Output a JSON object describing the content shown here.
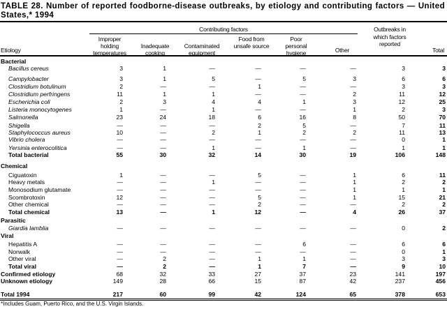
{
  "title": "TABLE 28. Number of reported foodborne-disease outbreaks, by etiology and contributing factors — United States,* 1994",
  "header": {
    "group": "Contributing factors",
    "etiology": "Etiology",
    "columns": [
      "Improper holding temperatures",
      "Inadequate cooking",
      "Contaminated equipment",
      "Food from unsafe source",
      "Poor personal hygiene",
      "Other",
      "Outbreaks in which factors reported",
      "Total"
    ]
  },
  "rows": [
    {
      "label": "Bacterial",
      "type": "section",
      "values": []
    },
    {
      "label": "Bacillus cereus",
      "type": "item italic",
      "values": [
        "3",
        "1",
        "—",
        "—",
        "—",
        "—",
        "3",
        "3"
      ]
    },
    {
      "label": "Campylobacter",
      "type": "item italic",
      "values": [
        "3",
        "1",
        "5",
        "—",
        "5",
        "3",
        "6",
        "6"
      ]
    },
    {
      "label": "Clostridium botulinum",
      "type": "item italic",
      "values": [
        "2",
        "—",
        "—",
        "1",
        "—",
        "—",
        "3",
        "3"
      ]
    },
    {
      "label": "Clostridium perfringens",
      "type": "item italic",
      "values": [
        "11",
        "1",
        "1",
        "—",
        "—",
        "2",
        "11",
        "12"
      ]
    },
    {
      "label": "Escherichia coli",
      "type": "item italic",
      "values": [
        "2",
        "3",
        "4",
        "4",
        "1",
        "3",
        "12",
        "25"
      ]
    },
    {
      "label": "Listeria monocytogenes",
      "type": "item italic",
      "values": [
        "1",
        "—",
        "1",
        "—",
        "—",
        "1",
        "2",
        "3"
      ]
    },
    {
      "label": "Salmonella",
      "type": "item italic",
      "values": [
        "23",
        "24",
        "18",
        "6",
        "16",
        "8",
        "50",
        "70"
      ]
    },
    {
      "label": "Shigella",
      "type": "item italic",
      "values": [
        "—",
        "—",
        "—",
        "2",
        "5",
        "—",
        "7",
        "11"
      ]
    },
    {
      "label": "Staphylococcus aureus",
      "type": "item italic",
      "values": [
        "10",
        "—",
        "2",
        "1",
        "2",
        "2",
        "11",
        "13"
      ]
    },
    {
      "label": "Vibrio cholera",
      "type": "item italic",
      "values": [
        "—",
        "—",
        "—",
        "—",
        "—",
        "—",
        "0",
        "1"
      ]
    },
    {
      "label": "Yersinia enterocolitica",
      "type": "item italic",
      "values": [
        "—",
        "—",
        "1",
        "—",
        "1",
        "—",
        "1",
        "1"
      ]
    },
    {
      "label": "Total bacterial",
      "type": "sub bold",
      "values": [
        "55",
        "30",
        "32",
        "14",
        "30",
        "19",
        "106",
        "148"
      ]
    },
    {
      "label": "Chemical",
      "type": "section",
      "values": []
    },
    {
      "label": "Ciguatoxin",
      "type": "item",
      "values": [
        "1",
        "—",
        "—",
        "5",
        "—",
        "1",
        "6",
        "11"
      ]
    },
    {
      "label": "Heavy metals",
      "type": "item",
      "values": [
        "—",
        "—",
        "1",
        "—",
        "—",
        "1",
        "2",
        "2"
      ]
    },
    {
      "label": "Monosodium glutamate",
      "type": "item",
      "values": [
        "—",
        "—",
        "—",
        "—",
        "—",
        "1",
        "1",
        "1"
      ]
    },
    {
      "label": "Scombrotoxin",
      "type": "item",
      "values": [
        "12",
        "—",
        "—",
        "5",
        "—",
        "1",
        "15",
        "21"
      ]
    },
    {
      "label": "Other chemical",
      "type": "item",
      "values": [
        "—",
        "—",
        "—",
        "2",
        "—",
        "—",
        "2",
        "2"
      ]
    },
    {
      "label": "Total chemical",
      "type": "sub bold",
      "values": [
        "13",
        "—",
        "1",
        "12",
        "—",
        "4",
        "26",
        "37"
      ]
    },
    {
      "label": "Parasitic",
      "type": "section",
      "values": []
    },
    {
      "label": "Giardia lamblia",
      "type": "item italic",
      "values": [
        "—",
        "—",
        "—",
        "—",
        "—",
        "—",
        "0",
        "2"
      ]
    },
    {
      "label": "Viral",
      "type": "section",
      "values": []
    },
    {
      "label": "Hepatitis A",
      "type": "item",
      "values": [
        "—",
        "—",
        "—",
        "—",
        "6",
        "—",
        "6",
        "6"
      ]
    },
    {
      "label": "Norwalk",
      "type": "item",
      "values": [
        "—",
        "—",
        "—",
        "—",
        "—",
        "—",
        "0",
        "1"
      ]
    },
    {
      "label": "Other viral",
      "type": "item",
      "values": [
        "—",
        "2",
        "—",
        "1",
        "1",
        "—",
        "3",
        "3"
      ]
    },
    {
      "label": "Total viral",
      "type": "sub bold",
      "values": [
        "—",
        "2",
        "—",
        "1",
        "7",
        "—",
        "9",
        "10"
      ]
    },
    {
      "label": "Confirmed etiology",
      "type": "section",
      "values": [
        "68",
        "32",
        "33",
        "27",
        "37",
        "23",
        "141",
        "197"
      ]
    },
    {
      "label": "Unknown etiology",
      "type": "section",
      "values": [
        "149",
        "28",
        "66",
        "15",
        "87",
        "42",
        "237",
        "456"
      ]
    },
    {
      "label": "Total 1994",
      "type": "section bold",
      "values": [
        "217",
        "60",
        "99",
        "42",
        "124",
        "65",
        "378",
        "653"
      ]
    }
  ],
  "footnote": "*Includes Guam, Puerto Rico, and the U.S. Virgin Islands."
}
